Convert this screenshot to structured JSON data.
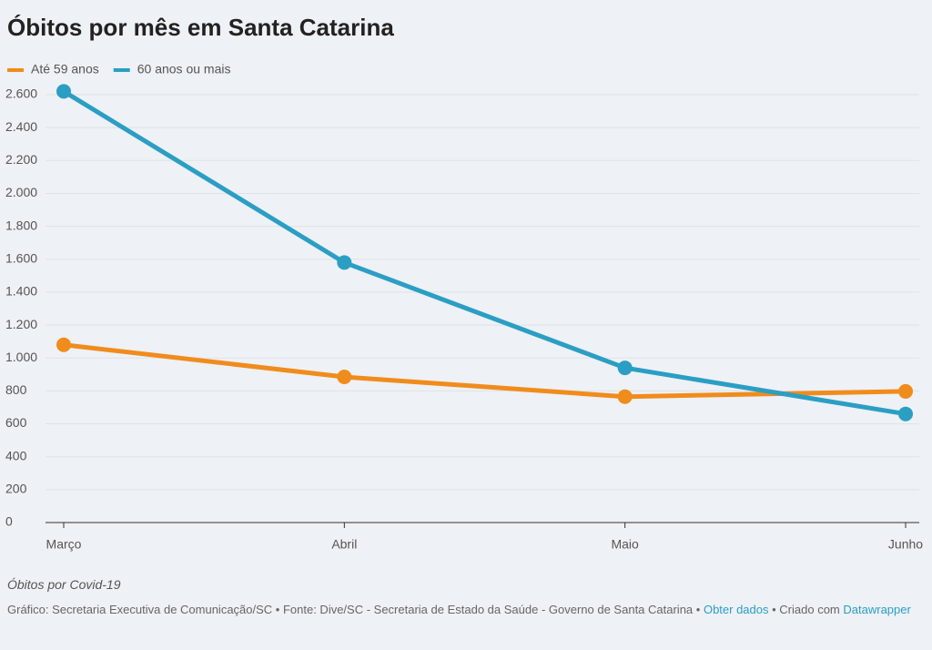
{
  "chart_data": {
    "type": "line",
    "title": "Óbitos por mês em Santa Catarina",
    "categories": [
      "Março",
      "Abril",
      "Maio",
      "Junho"
    ],
    "series": [
      {
        "name": "Até 59 anos",
        "color": "#f08c1c",
        "values": [
          1080,
          885,
          765,
          797
        ]
      },
      {
        "name": "60 anos ou mais",
        "color": "#2b9ec4",
        "values": [
          2620,
          1580,
          940,
          660
        ]
      }
    ],
    "ylim": [
      0,
      2600
    ],
    "yticks": [
      0,
      200,
      400,
      600,
      800,
      {
        "value": 1000,
        "label": "1.000"
      },
      {
        "value": 1200,
        "label": "1.200"
      },
      {
        "value": 1400,
        "label": "1.400"
      },
      {
        "value": 1600,
        "label": "1.600"
      },
      {
        "value": 1800,
        "label": "1.800"
      },
      {
        "value": 2000,
        "label": "2.000"
      },
      {
        "value": 2200,
        "label": "2.200"
      },
      {
        "value": 2400,
        "label": "2.400"
      },
      {
        "value": 2600,
        "label": "2.600"
      }
    ],
    "grid": true,
    "legend": "top-left",
    "subtitle_note": "Óbitos por Covid-19",
    "footer": {
      "text1": "Gráfico: Secretaria Executiva de Comunicação/SC • Fonte: Dive/SC - Secretaria de Estado da Saúde - Governo de Santa Catarina •",
      "link1": "Obter dados",
      "text2": "• Criado com",
      "link2": "Datawrapper"
    }
  }
}
